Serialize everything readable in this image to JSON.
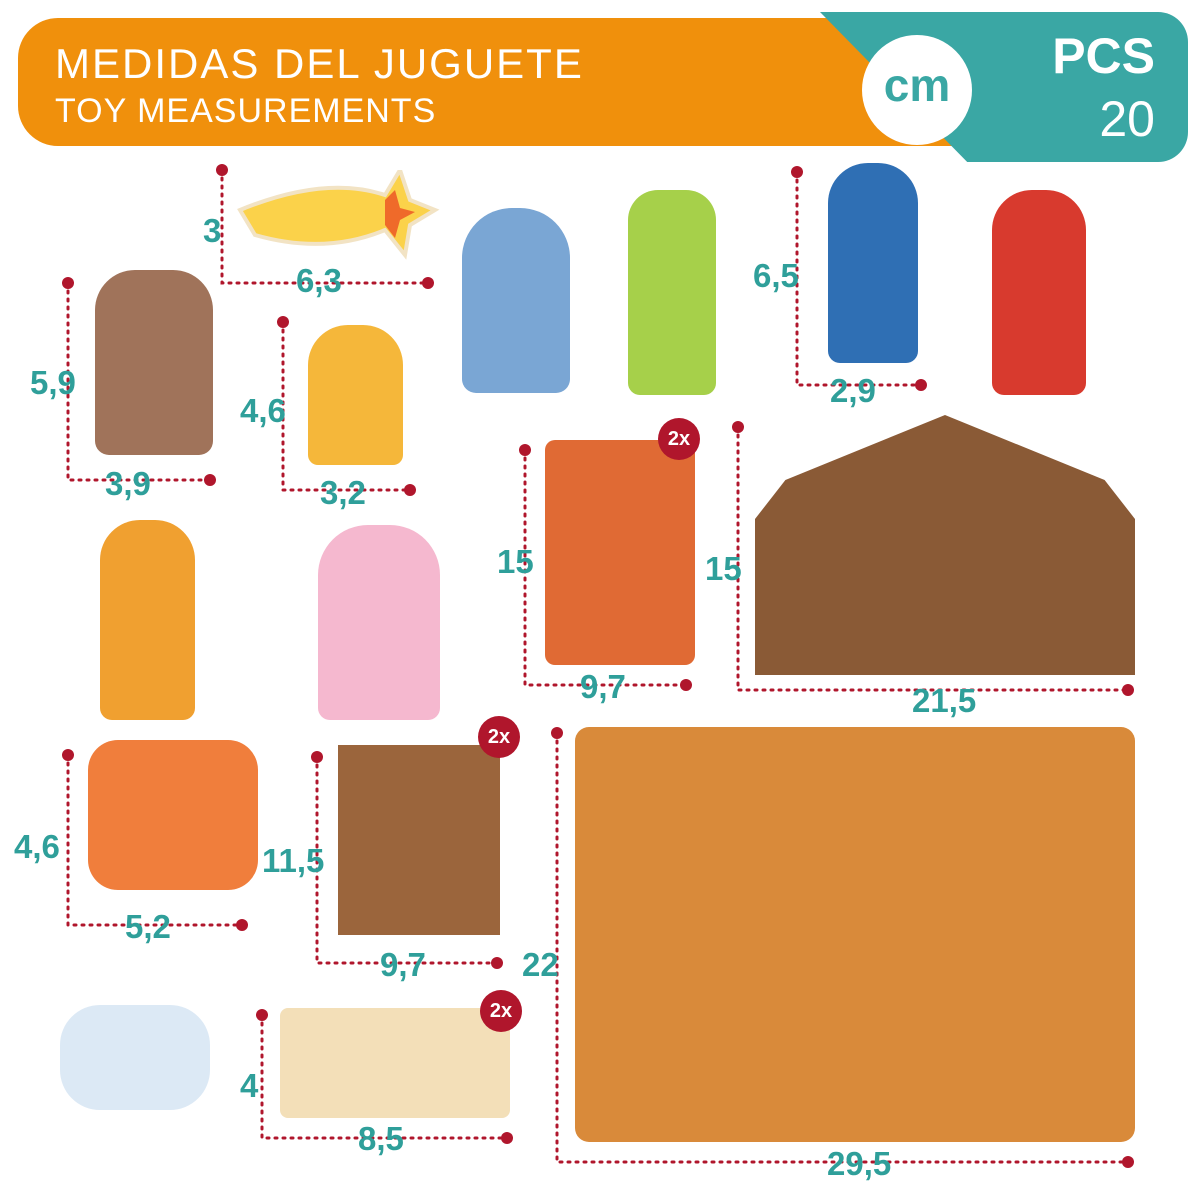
{
  "header": {
    "title_es": "MEDIDAS DEL JUGUETE",
    "title_en": "TOY MEASUREMENTS",
    "unit": "cm",
    "pieces_label": "PCS",
    "pieces_count": "20"
  },
  "colors": {
    "orange": "#f0900c",
    "teal": "#3aa7a4",
    "label": "#2f9f9a",
    "dots": "#b0162c"
  },
  "pieces": {
    "star": {
      "height": "3",
      "width": "6,3"
    },
    "joseph": {
      "height": "5,9",
      "width": "3,9"
    },
    "baby_jesus": {
      "height": "4,6",
      "width": "3,2"
    },
    "king": {
      "height": "6,5",
      "width": "2,9"
    },
    "door": {
      "height": "15",
      "width": "9,7",
      "qty": "2x"
    },
    "stable": {
      "height": "15",
      "width": "21,5"
    },
    "donkey": {
      "height": "4,6",
      "width": "5,2"
    },
    "wall": {
      "height": "11,5",
      "width": "9,7",
      "qty": "2x"
    },
    "base": {
      "height": "22",
      "width": "29,5"
    },
    "fence": {
      "height": "4",
      "width": "8,5",
      "qty": "2x"
    }
  }
}
